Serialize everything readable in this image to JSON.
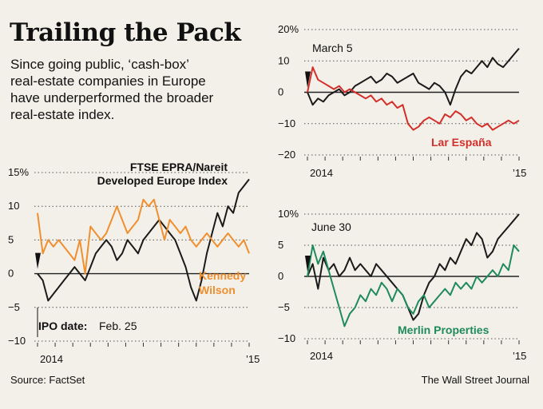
{
  "title": "Trailing the Pack",
  "subtitle_lines": [
    "Since going public, ‘cash-box’",
    "real-estate companies in Europe",
    "have underperformed the broader",
    "real-estate index."
  ],
  "source": "Source: FactSet",
  "credit": "The Wall Street Journal",
  "colors": {
    "index": "#1a1a1a",
    "kennedy": "#ef8f2f",
    "lar": "#d32f2a",
    "merlin": "#1f8a5a",
    "grid": "#555555",
    "background": "#f3f0e9"
  },
  "chart_data": [
    {
      "type": "line",
      "ylim": [
        -10,
        15
      ],
      "y_ticks": [
        "15%",
        "10",
        "5",
        "0",
        "−5",
        "−10"
      ],
      "y_tick_values": [
        15,
        10,
        5,
        0,
        -5,
        -10
      ],
      "x_tick_labels": [
        "2014",
        "’15"
      ],
      "annotation_label": "IPO date:",
      "annotation_value": "Feb. 25",
      "series": [
        {
          "name": "FTSE EPRA/Nareit Developed Europe Index",
          "label_lines": [
            "FTSE EPRA/Nareit",
            "Developed Europe Index"
          ],
          "color": "#1a1a1a",
          "values": [
            0,
            -1,
            -4,
            -3,
            -2,
            -1,
            0,
            1,
            0,
            -1,
            1,
            3,
            4,
            5,
            4,
            2,
            3,
            5,
            4,
            3,
            5,
            6,
            7,
            8,
            7,
            6,
            5,
            3,
            1,
            -2,
            -4,
            -1,
            3,
            6,
            9,
            7,
            10,
            9,
            12,
            13,
            14
          ]
        },
        {
          "name": "Kennedy Wilson",
          "label_lines": [
            "Kennedy",
            "Wilson"
          ],
          "color": "#ef8f2f",
          "values": [
            9,
            3,
            5,
            4,
            5,
            4,
            3,
            2,
            5,
            0,
            7,
            6,
            5,
            6,
            8,
            10,
            8,
            6,
            7,
            8,
            11,
            10,
            11,
            8,
            5,
            8,
            7,
            6,
            7,
            5,
            4,
            5,
            6,
            5,
            4,
            5,
            6,
            5,
            4,
            5,
            3
          ]
        }
      ]
    },
    {
      "type": "line",
      "ylim": [
        -20,
        20
      ],
      "y_ticks": [
        "20%",
        "10",
        "0",
        "−10",
        "−20"
      ],
      "y_tick_values": [
        20,
        10,
        0,
        -10,
        -20
      ],
      "x_tick_labels": [
        "2014",
        "’15"
      ],
      "annotation_label": "March 5",
      "series": [
        {
          "name": "FTSE EPRA/Nareit Developed Europe Index",
          "color": "#1a1a1a",
          "values": [
            0,
            -4,
            -2,
            -3,
            -1,
            0,
            1,
            -1,
            0,
            2,
            3,
            4,
            5,
            3,
            4,
            6,
            5,
            3,
            4,
            5,
            6,
            3,
            2,
            1,
            3,
            2,
            0,
            -4,
            1,
            5,
            7,
            6,
            8,
            10,
            8,
            11,
            9,
            8,
            10,
            12,
            14
          ]
        },
        {
          "name": "Lar España",
          "color": "#d32f2a",
          "values": [
            0,
            8,
            4,
            3,
            2,
            1,
            2,
            0,
            1,
            0,
            -1,
            -2,
            -1,
            -3,
            -2,
            -4,
            -3,
            -5,
            -4,
            -10,
            -12,
            -11,
            -9,
            -8,
            -9,
            -10,
            -7,
            -8,
            -6,
            -7,
            -9,
            -8,
            -10,
            -11,
            -10,
            -12,
            -11,
            -10,
            -9,
            -10,
            -9
          ]
        }
      ]
    },
    {
      "type": "line",
      "ylim": [
        -10,
        10
      ],
      "y_ticks": [
        "10%",
        "5",
        "0",
        "−5",
        "−10"
      ],
      "y_tick_values": [
        10,
        5,
        0,
        -5,
        -10
      ],
      "x_tick_labels": [
        "2014",
        "’15"
      ],
      "annotation_label": "June 30",
      "series": [
        {
          "name": "FTSE EPRA/Nareit Developed Europe Index",
          "color": "#1a1a1a",
          "values": [
            0,
            2,
            -2,
            3,
            1,
            2,
            0,
            1,
            3,
            1,
            2,
            1,
            0,
            2,
            1,
            0,
            -1,
            -2,
            -3,
            -5,
            -7,
            -6,
            -3,
            -1,
            0,
            2,
            1,
            3,
            2,
            4,
            6,
            5,
            7,
            6,
            3,
            4,
            6,
            7,
            8,
            9,
            10
          ]
        },
        {
          "name": "Merlin Properties",
          "color": "#1f8a5a",
          "values": [
            0,
            5,
            2,
            4,
            1,
            -2,
            -5,
            -8,
            -6,
            -5,
            -3,
            -4,
            -2,
            -3,
            -1,
            -2,
            -4,
            -2,
            -3,
            -5,
            -6,
            -4,
            -3,
            -5,
            -4,
            -3,
            -2,
            -3,
            -1,
            -2,
            -1,
            -2,
            0,
            -1,
            0,
            1,
            0,
            2,
            1,
            5,
            4
          ]
        }
      ]
    }
  ]
}
